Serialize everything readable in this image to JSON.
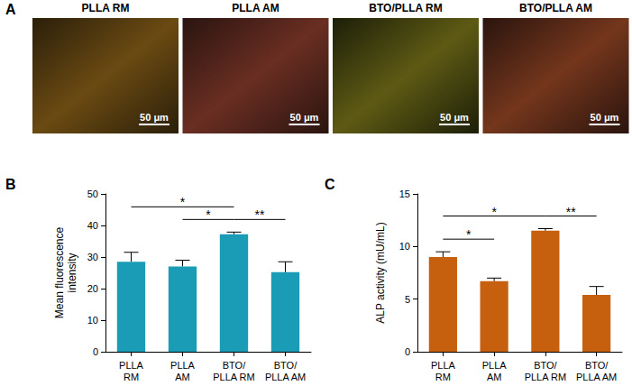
{
  "images": {
    "label": "A",
    "titles": [
      "PLLA RM",
      "PLLA AM",
      "BTO/PLLA RM",
      "BTO/PLLA AM"
    ],
    "scale_bar": "50 μm"
  },
  "chart_data": [
    {
      "label": "B",
      "type": "bar",
      "categories": [
        "PLLA RM",
        "PLLA AM",
        "BTO/PLLA RM",
        "BTO/PLLA AM"
      ],
      "values": [
        28.5,
        27,
        37.2,
        25.2
      ],
      "errors": [
        3,
        2,
        0.7,
        3.3
      ],
      "color": "#1a9cb6",
      "y_label": "Mean fluorescence intensity",
      "ylim": [
        0,
        50
      ],
      "yticks": [
        0,
        10,
        20,
        30,
        40,
        50
      ],
      "grid": false,
      "significance": [
        {
          "from": "PLLA RM",
          "to": "BTO/PLLA RM",
          "text": "*"
        },
        {
          "from": "PLLA AM",
          "to": "BTO/PLLA RM",
          "text": "*"
        },
        {
          "from": "BTO/PLLA RM",
          "to": "BTO/PLLA AM",
          "text": "**"
        }
      ]
    },
    {
      "label": "C",
      "type": "bar",
      "categories": [
        "PLLA RM",
        "PLLA AM",
        "BTO/PLLA RM",
        "BTO/PLLA AM"
      ],
      "values": [
        9.0,
        6.7,
        11.5,
        5.4
      ],
      "errors": [
        0.5,
        0.3,
        0.2,
        0.8
      ],
      "color": "#c65f0e",
      "y_label": "ALP activity (mU/mL)",
      "ylim": [
        0,
        15
      ],
      "yticks": [
        0,
        5,
        10,
        15
      ],
      "grid": false,
      "significance": [
        {
          "from": "PLLA RM",
          "to": "PLLA AM",
          "text": "*"
        },
        {
          "from": "PLLA RM",
          "to": "BTO/PLLA RM",
          "text": "*"
        },
        {
          "from": "BTO/PLLA RM",
          "to": "BTO/PLLA AM",
          "text": "**"
        }
      ]
    }
  ]
}
